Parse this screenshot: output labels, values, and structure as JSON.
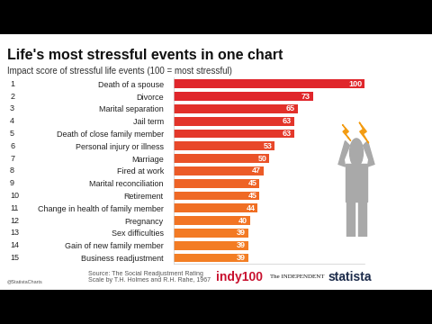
{
  "chart_data": {
    "type": "bar",
    "orientation": "horizontal",
    "title": "Life's most stressful events in one chart",
    "subtitle": "Impact score of stressful life events (100 = most stressful)",
    "ranks": [
      1,
      2,
      3,
      4,
      5,
      6,
      7,
      8,
      9,
      10,
      11,
      12,
      13,
      14,
      15
    ],
    "categories": [
      "Death of a spouse",
      "Divorce",
      "Marital separation",
      "Jail term",
      "Death of close family member",
      "Personal injury or illness",
      "Marriage",
      "Fired at work",
      "Marital reconciliation",
      "Retirement",
      "Change in health of family member",
      "Pregnancy",
      "Sex difficulties",
      "Gain of new family member",
      "Business readjustment"
    ],
    "values": [
      100,
      73,
      65,
      63,
      63,
      53,
      50,
      47,
      45,
      45,
      44,
      40,
      39,
      39,
      39
    ],
    "colors": [
      "#e0262b",
      "#e0262b",
      "#e2302a",
      "#e3342a",
      "#e4382a",
      "#e8482a",
      "#ea5228",
      "#ec5b27",
      "#ee6326",
      "#ef6925",
      "#f06f24",
      "#f27424",
      "#f37a24",
      "#f37c24",
      "#f37e24"
    ],
    "xlim": [
      0,
      100
    ],
    "data_labels": true,
    "tick_labels": "y",
    "grid": false,
    "source": "Source: The Social Readjustment Rating\nScale by T.H. Holmes and R.H. Rahe, 1967",
    "credit": "@StatistaCharts",
    "logos": [
      "indy100",
      "The INDEPENDENT",
      "statista"
    ]
  }
}
